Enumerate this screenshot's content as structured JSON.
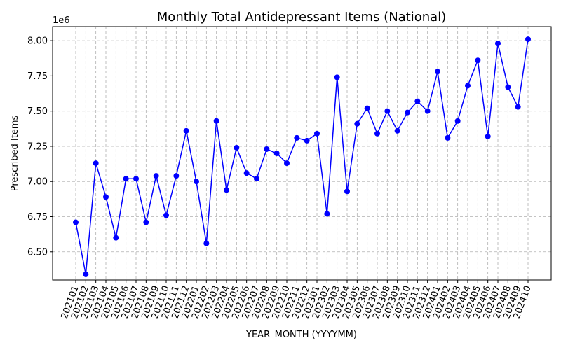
{
  "chart_data": {
    "type": "line",
    "title": "Monthly Total Antidepressant Items (National)",
    "xlabel": "YEAR_MONTH (YYYYMM)",
    "ylabel": "Prescribed Items",
    "y_offset_label": "1e6",
    "y_scale": 1000000,
    "ylim": [
      6.3,
      8.1
    ],
    "y_ticks": [
      6.5,
      6.75,
      7.0,
      7.25,
      7.5,
      7.75,
      8.0
    ],
    "y_tick_labels": [
      "6.50",
      "6.75",
      "7.00",
      "7.25",
      "7.50",
      "7.75",
      "8.00"
    ],
    "grid": true,
    "line_color": "#0000ff",
    "categories": [
      "202101",
      "202102",
      "202103",
      "202104",
      "202105",
      "202106",
      "202107",
      "202108",
      "202109",
      "202110",
      "202111",
      "202112",
      "202201",
      "202202",
      "202203",
      "202204",
      "202205",
      "202206",
      "202207",
      "202208",
      "202209",
      "202210",
      "202211",
      "202212",
      "202301",
      "202302",
      "202303",
      "202304",
      "202305",
      "202306",
      "202307",
      "202308",
      "202309",
      "202310",
      "202311",
      "202312",
      "202401",
      "202402",
      "202403",
      "202404",
      "202405",
      "202406",
      "202407",
      "202408",
      "202409",
      "202410"
    ],
    "values": [
      6.71,
      6.34,
      7.13,
      6.89,
      6.6,
      7.02,
      7.02,
      6.71,
      7.04,
      6.76,
      7.04,
      7.36,
      7.0,
      6.56,
      7.43,
      6.94,
      7.24,
      7.06,
      7.02,
      7.23,
      7.2,
      7.13,
      7.31,
      7.29,
      7.34,
      6.77,
      7.74,
      6.93,
      7.41,
      7.52,
      7.34,
      7.5,
      7.36,
      7.49,
      7.57,
      7.5,
      7.78,
      7.31,
      7.43,
      7.68,
      7.86,
      7.32,
      7.98,
      7.67,
      7.53,
      8.01
    ]
  }
}
